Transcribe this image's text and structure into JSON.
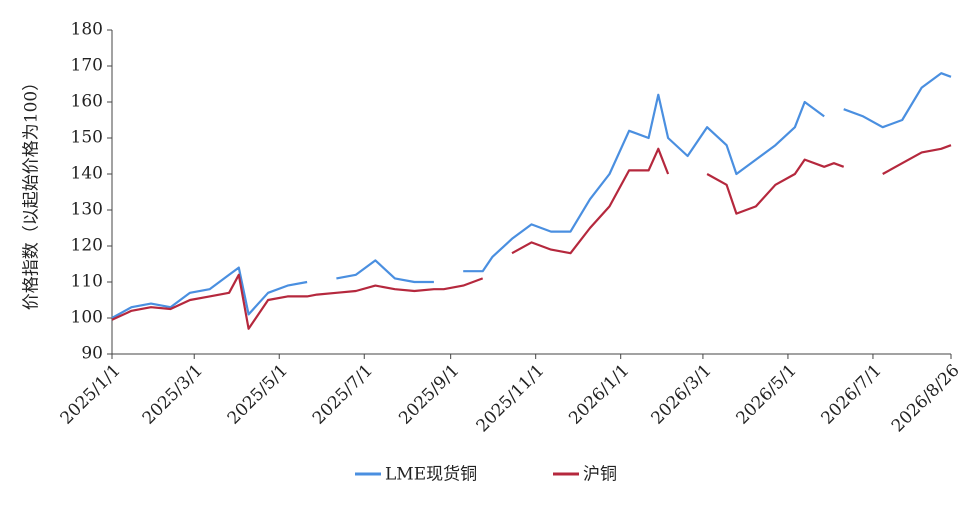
{
  "chart_data": {
    "type": "line",
    "y_label": "价格指数（以起始价格为100）",
    "x": [
      "2025/1/1",
      "2025/1/15",
      "2025/1/29",
      "2025/2/12",
      "2025/2/26",
      "2025/3/12",
      "2025/3/26",
      "2025/4/2",
      "2025/4/9",
      "2025/4/23",
      "2025/5/7",
      "2025/5/21",
      "2025/5/28",
      "2025/6/11",
      "2025/6/25",
      "2025/7/9",
      "2025/7/23",
      "2025/8/6",
      "2025/8/20",
      "2025/8/27",
      "2025/9/10",
      "2025/9/24",
      "2025/10/1",
      "2025/10/15",
      "2025/10/29",
      "2025/11/12",
      "2025/11/26",
      "2025/12/10",
      "2025/12/24",
      "2026/1/7",
      "2026/1/21",
      "2026/1/28",
      "2026/2/4",
      "2026/2/18",
      "2026/3/4",
      "2026/3/18",
      "2026/3/25",
      "2026/4/8",
      "2026/4/22",
      "2026/5/6",
      "2026/5/13",
      "2026/5/27",
      "2026/6/3",
      "2026/6/10",
      "2026/6/24",
      "2026/7/8",
      "2026/7/22",
      "2026/8/5",
      "2026/8/19",
      "2026/8/26"
    ],
    "series": [
      {
        "name": "LME现货铜",
        "color": "#4a8fe0",
        "values": [
          100,
          103,
          104,
          103,
          107,
          108,
          112,
          114,
          101,
          107,
          109,
          110,
          null,
          111,
          112,
          116,
          111,
          110,
          110,
          null,
          113,
          113,
          117,
          122,
          126,
          124,
          124,
          133,
          140,
          152,
          150,
          162,
          150,
          145,
          153,
          148,
          140,
          144,
          148,
          153,
          160,
          156,
          null,
          158,
          156,
          153,
          155,
          164,
          168,
          167
        ]
      },
      {
        "name": "沪铜",
        "color": "#b5283d",
        "values": [
          99.5,
          102,
          103,
          102.5,
          105,
          106,
          107,
          112,
          97,
          105,
          106,
          106,
          106.5,
          107,
          107.5,
          109,
          108,
          107.5,
          108,
          108,
          109,
          111,
          null,
          118,
          121,
          119,
          118,
          125,
          131,
          141,
          141,
          147,
          140,
          null,
          140,
          137,
          129,
          131,
          137,
          140,
          144,
          142,
          143,
          142,
          null,
          140,
          143,
          146,
          147,
          148
        ]
      }
    ],
    "xlim": [
      "2025/1/1",
      "2026/8/26"
    ],
    "xticks": [
      "2025/1/1",
      "2025/3/1",
      "2025/5/1",
      "2025/7/1",
      "2025/9/1",
      "2025/11/1",
      "2026/1/1",
      "2026/3/1",
      "2026/5/1",
      "2026/7/1",
      "2026/8/26"
    ],
    "ylim": [
      90,
      180
    ],
    "yticks": [
      90,
      100,
      110,
      120,
      130,
      140,
      150,
      160,
      170,
      180
    ],
    "legend": "bottom"
  }
}
